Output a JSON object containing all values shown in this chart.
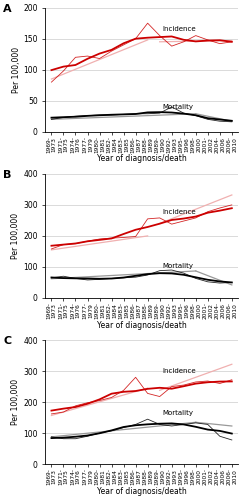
{
  "xtick_labels": [
    "1969-\n1973",
    "1971-\n1975",
    "1974-\n1976",
    "1977-\n1979",
    "1980-\n1981",
    "1982-\n1984",
    "1983-\n1985",
    "1986-\n1987",
    "1988-\n1989",
    "1989-\n1990",
    "1992-\n1993",
    "1995-\n1996",
    "1998-\n2000",
    "2001-\n2002",
    "2004-\n2006",
    "2006-\n2010"
  ],
  "panelA": {
    "ylim": [
      0,
      200
    ],
    "yticks": [
      0,
      50,
      100,
      150,
      200
    ],
    "incidence_raw": [
      80,
      98,
      120,
      122,
      118,
      130,
      140,
      150,
      175,
      155,
      138,
      145,
      155,
      148,
      142,
      145,
      150,
      148,
      155
    ],
    "mortality_raw": [
      20,
      23,
      25,
      26,
      27,
      27,
      28,
      29,
      29,
      30,
      40,
      30,
      26,
      20,
      17,
      16,
      16,
      17,
      17
    ],
    "inc_reg1": [
      0,
      8,
      85,
      148
    ],
    "inc_reg2": [
      9,
      15,
      145,
      147
    ],
    "mort_reg1": [
      0,
      12,
      20,
      29
    ],
    "mort_reg2": [
      12,
      15,
      29,
      17
    ]
  },
  "panelB": {
    "ylim": [
      0,
      400
    ],
    "yticks": [
      0,
      100,
      200,
      300,
      400
    ],
    "incidence_raw": [
      158,
      172,
      175,
      183,
      190,
      193,
      195,
      198,
      255,
      258,
      238,
      248,
      258,
      278,
      290,
      300,
      310,
      322,
      330
    ],
    "mortality_raw": [
      65,
      70,
      63,
      58,
      60,
      63,
      65,
      67,
      74,
      88,
      90,
      80,
      63,
      52,
      48,
      50,
      48,
      45,
      40
    ],
    "inc_reg1": [
      0,
      8,
      155,
      200
    ],
    "inc_reg2": [
      9,
      15,
      240,
      332
    ],
    "mort_reg1": [
      0,
      12,
      62,
      87
    ],
    "mort_reg2": [
      12,
      15,
      87,
      42
    ]
  },
  "panelC": {
    "ylim": [
      0,
      400
    ],
    "yticks": [
      0,
      100,
      200,
      300,
      400
    ],
    "incidence_raw": [
      162,
      168,
      188,
      198,
      205,
      215,
      238,
      280,
      228,
      218,
      250,
      255,
      265,
      268,
      260,
      272,
      290,
      308,
      342
    ],
    "mortality_raw": [
      88,
      82,
      82,
      90,
      100,
      108,
      118,
      128,
      145,
      128,
      123,
      128,
      133,
      128,
      90,
      78,
      76,
      98,
      128
    ],
    "inc_reg1": [
      0,
      8,
      157,
      245
    ],
    "inc_reg2": [
      9,
      15,
      238,
      322
    ],
    "mort_reg1": [
      0,
      12,
      88,
      135
    ],
    "mort_reg2": [
      12,
      15,
      135,
      123
    ]
  },
  "incidence_color": "#cc0000",
  "mortality_color": "#000000",
  "regression_inc_color": "#f0b0b0",
  "regression_mort_color": "#999999",
  "ylabel": "Per 100,000",
  "xlabel": "Year of diagnosis/death",
  "panel_letters": [
    "A",
    "B",
    "C"
  ]
}
